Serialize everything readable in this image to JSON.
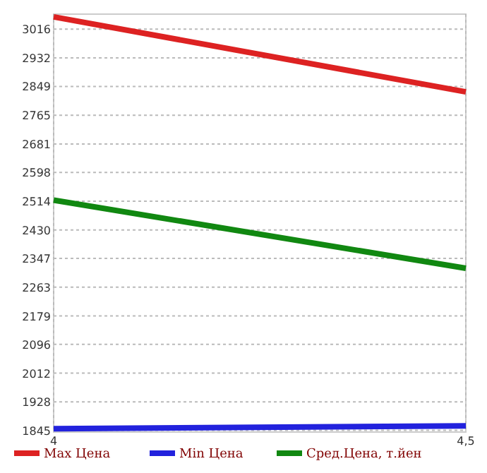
{
  "chart_data": {
    "type": "line",
    "xlim": [
      4,
      4.5
    ],
    "xticks": [
      4,
      {
        "value": 4.5,
        "label": "4,5"
      }
    ],
    "ylim": [
      1840,
      3060
    ],
    "yticks": [
      1845,
      1928,
      2012,
      2096,
      2179,
      2263,
      2347,
      2430,
      2514,
      2598,
      2681,
      2765,
      2849,
      2932,
      3016
    ],
    "grid": true,
    "legend": "bottom",
    "marker": "none",
    "line_style": "solid",
    "x": [
      4,
      4.5
    ],
    "series": [
      {
        "name": "Max Цена",
        "color": "#dd2222",
        "values": [
          3052,
          2833
        ]
      },
      {
        "name": "Min Цена",
        "color": "#2222dd",
        "values": [
          1850,
          1858
        ]
      },
      {
        "name": "Сред.Цена, т.йен",
        "color": "#118811",
        "values": [
          2517,
          2318
        ]
      }
    ]
  }
}
